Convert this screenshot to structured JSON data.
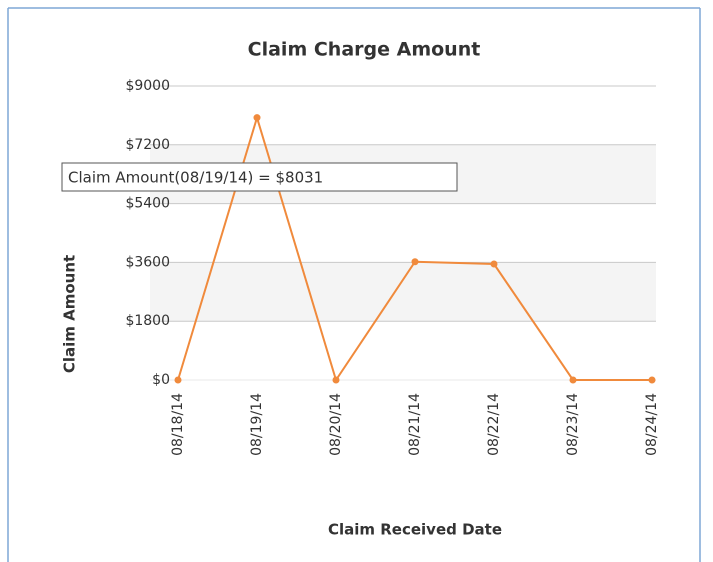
{
  "chart_data": {
    "type": "line",
    "title": "Claim Charge Amount",
    "x_label": "Claim Received Date",
    "y_label": "Claim Amount",
    "categories": [
      "08/18/14",
      "08/19/14",
      "08/20/14",
      "08/21/14",
      "08/22/14",
      "08/23/14",
      "08/24/14"
    ],
    "series": [
      {
        "name": "Claim Amount",
        "color": "#f08a3c",
        "values": [
          0,
          8031,
          0,
          3620,
          3550,
          0,
          0
        ]
      }
    ],
    "ylim": [
      0,
      9000
    ],
    "yticks": [
      {
        "value": 0,
        "label": "$0"
      },
      {
        "value": 1800,
        "label": "$1800"
      },
      {
        "value": 3600,
        "label": "$3600"
      },
      {
        "value": 5400,
        "label": "$5400"
      },
      {
        "value": 7200,
        "label": "$7200"
      },
      {
        "value": 9000,
        "label": "$9000"
      }
    ],
    "grid": true,
    "annotation": "Claim Amount(08/19/14) = $8031"
  }
}
